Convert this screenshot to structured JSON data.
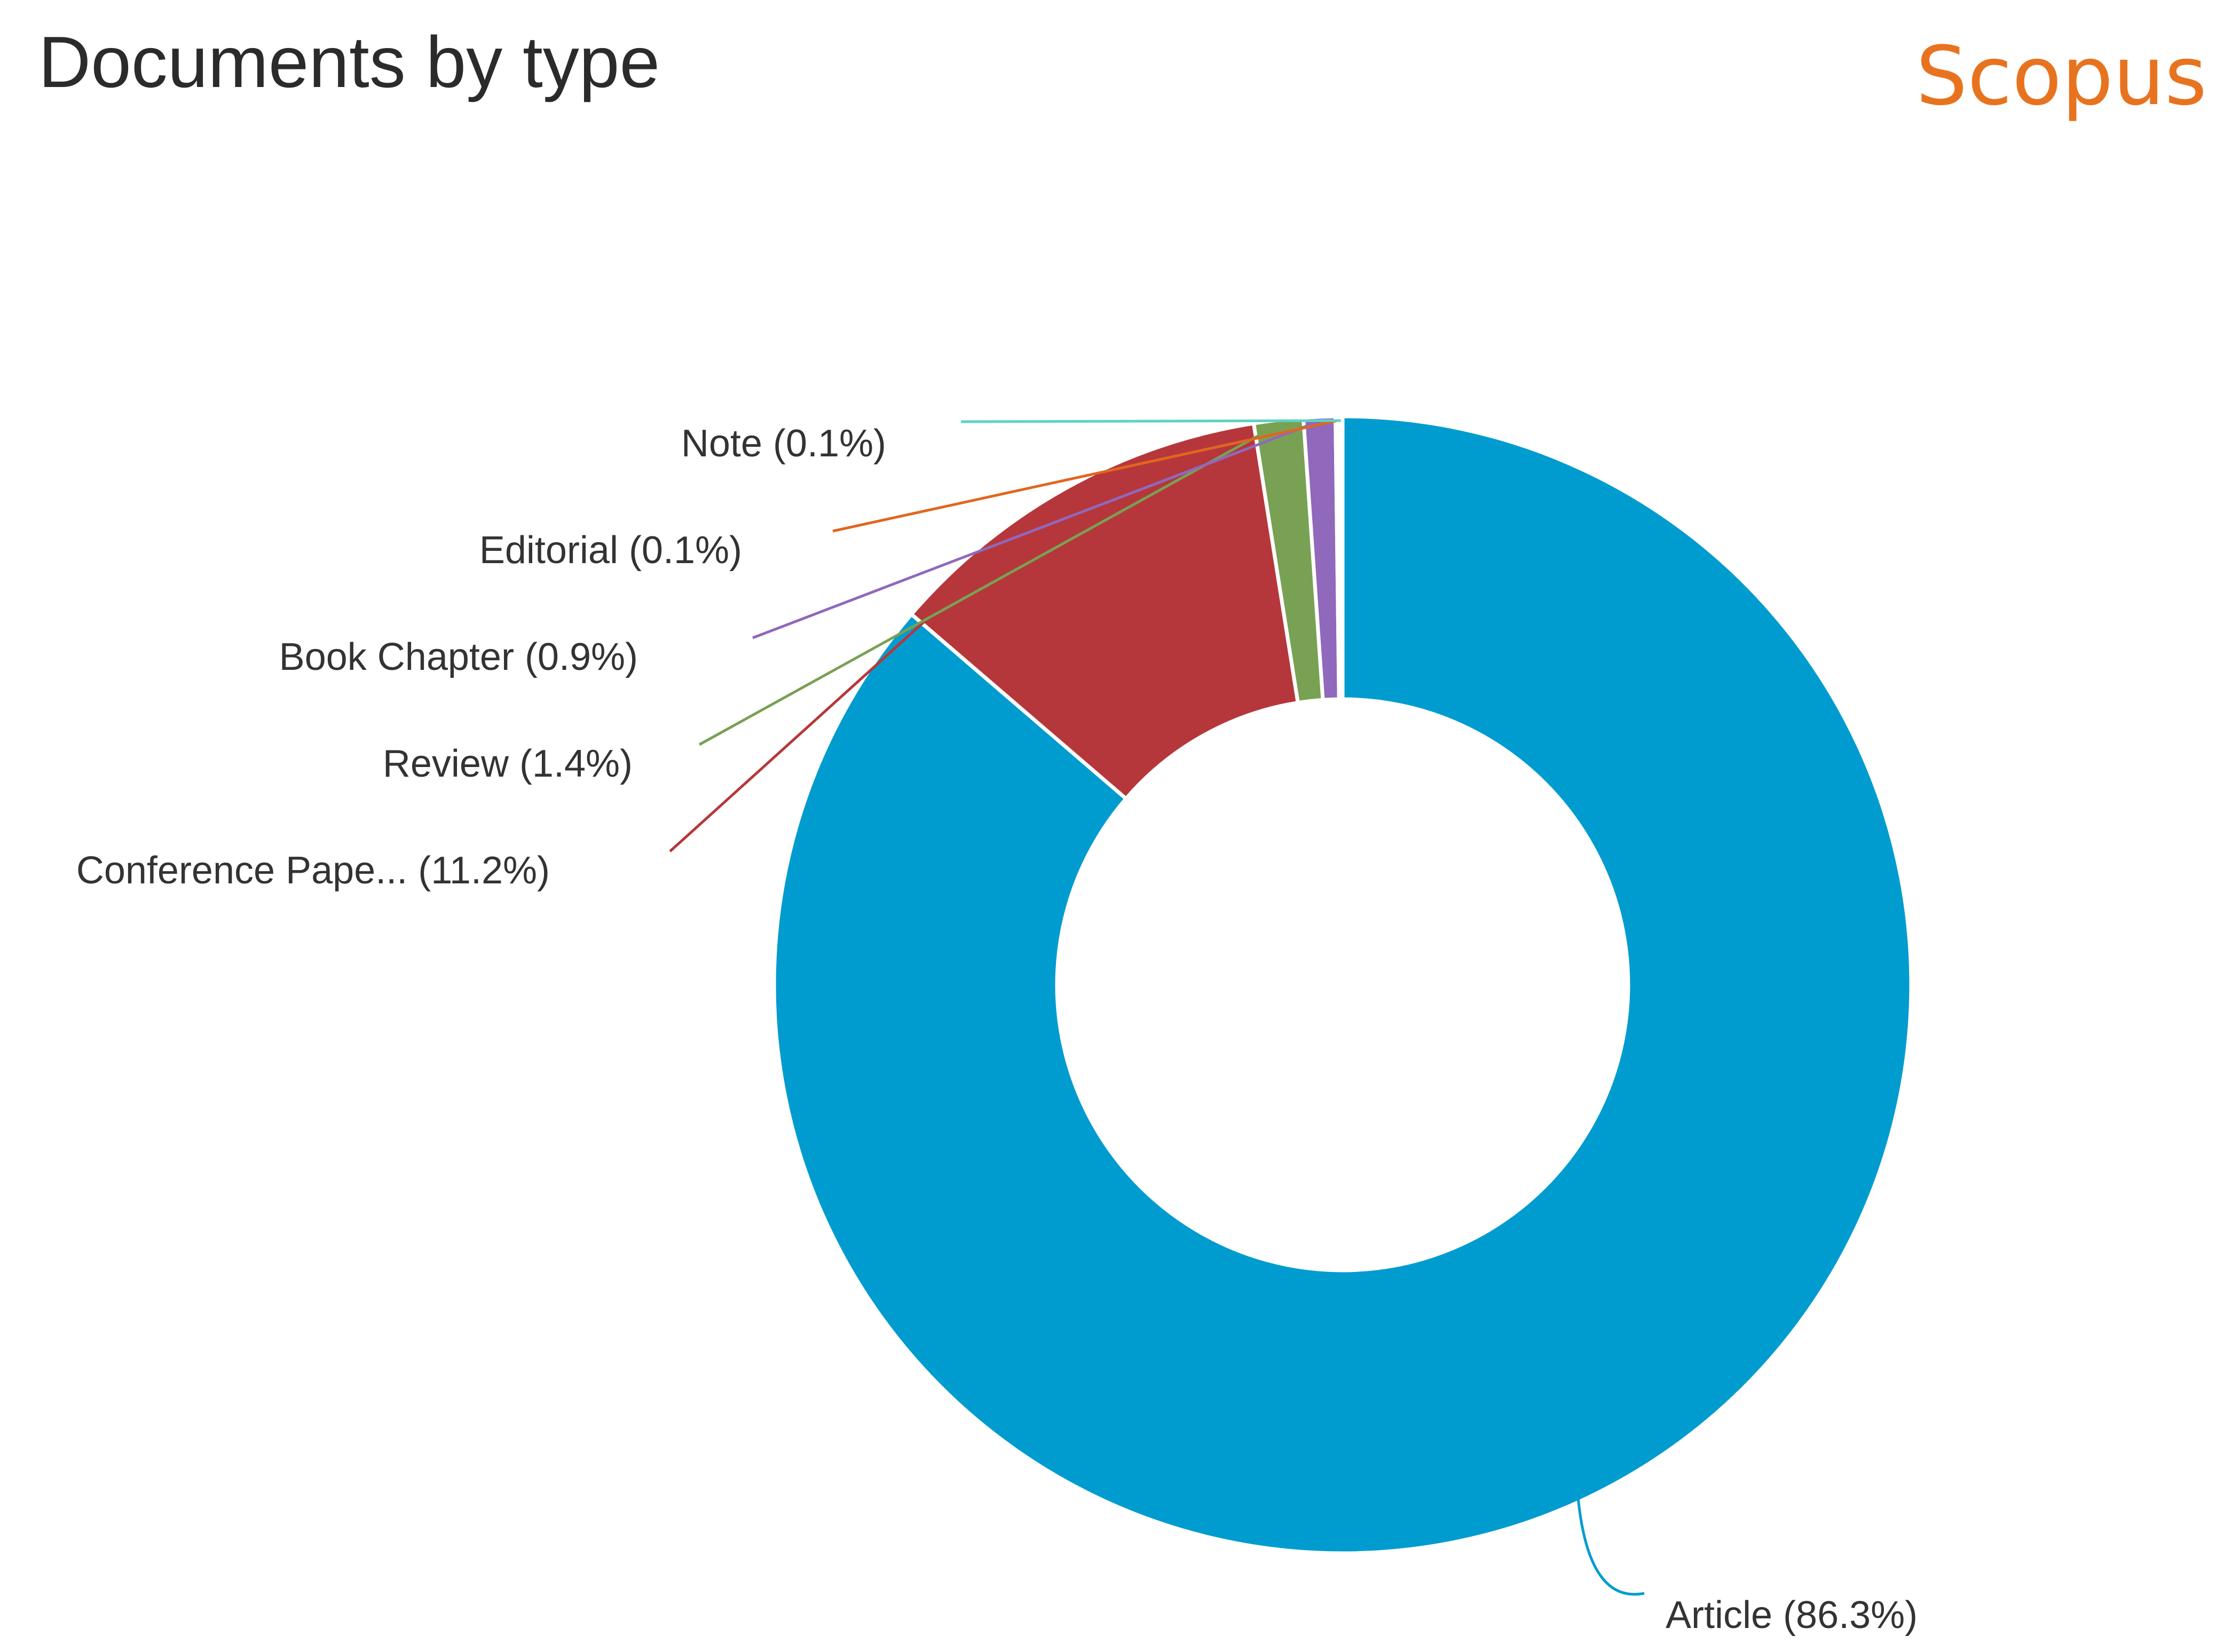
{
  "header": {
    "title": "Documents by type",
    "brand": "Scopus"
  },
  "colors": {
    "brand": "#e8731f",
    "title": "#2b2b2b"
  },
  "chart_data": {
    "type": "pie",
    "donut": true,
    "title": "Documents by type",
    "start_angle": "top, clockwise",
    "slices": [
      {
        "label": "Article (86.3%)",
        "name": "Article",
        "value": 86.3,
        "color": "#009ccf"
      },
      {
        "label": "Conference Pape... (11.2%)",
        "name": "Conference Pape...",
        "value": 11.2,
        "color": "#b6373b"
      },
      {
        "label": "Review (1.4%)",
        "name": "Review",
        "value": 1.4,
        "color": "#79a154"
      },
      {
        "label": "Book Chapter (0.9%)",
        "name": "Book Chapter",
        "value": 0.9,
        "color": "#9068bc"
      },
      {
        "label": "Editorial (0.1%)",
        "name": "Editorial",
        "value": 0.1,
        "color": "#e0661f"
      },
      {
        "label": "Note (0.1%)",
        "name": "Note",
        "value": 0.1,
        "color": "#5ed3c3"
      }
    ]
  }
}
